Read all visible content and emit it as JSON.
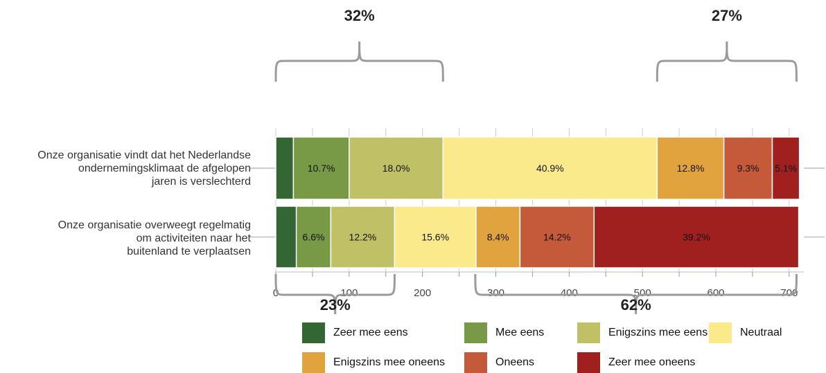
{
  "chart_data": {
    "type": "bar",
    "orientation": "horizontal",
    "stacked": true,
    "categories": [
      "Onze organisatie vindt dat het Nederlandse ondernemingsklimaat de afgelopen jaren is verslechterd",
      "Onze organisatie overweegt regelmatig om activiteiten naar het buitenland te verplaatsen"
    ],
    "category_lines": [
      [
        "Onze organisatie vindt dat het Nederlandse",
        "ondernemingsklimaat de afgelopen",
        "jaren is verslechterd"
      ],
      [
        "Onze organisatie overweegt regelmatig",
        "om activiteiten naar het",
        "buitenland te verplaatsen"
      ]
    ],
    "series": [
      {
        "name": "Zeer mee eens",
        "color": "#336633",
        "values": [
          24,
          28
        ],
        "labels": [
          "",
          ""
        ]
      },
      {
        "name": "Mee eens",
        "color": "#789a46",
        "values": [
          76,
          47
        ],
        "labels": [
          "10.7%",
          "6.6%"
        ]
      },
      {
        "name": "Enigszins mee eens",
        "color": "#c0c067",
        "values": [
          128,
          87
        ],
        "labels": [
          "18.0%",
          "12.2%"
        ]
      },
      {
        "name": "Neutraal",
        "color": "#faea8b",
        "values": [
          292,
          111
        ],
        "labels": [
          "40.9%",
          "15.6%"
        ]
      },
      {
        "name": "Enigszins mee oneens",
        "color": "#e0a33e",
        "values": [
          91,
          60
        ],
        "labels": [
          "12.8%",
          "8.4%"
        ]
      },
      {
        "name": "Oneens",
        "color": "#c55a3b",
        "values": [
          66,
          101
        ],
        "labels": [
          "9.3%",
          "14.2%"
        ]
      },
      {
        "name": "Zeer mee oneens",
        "color": "#a02020",
        "values": [
          37,
          279
        ],
        "labels": [
          "5.1%",
          "39.2%"
        ]
      }
    ],
    "xlim": [
      0,
      720
    ],
    "xticks": [
      0,
      100,
      200,
      300,
      400,
      500,
      600,
      700
    ],
    "grid": true,
    "legend_position": "bottom",
    "annotations": [
      {
        "text": "32%",
        "from": 0,
        "to": 228,
        "row": "top",
        "position": "above"
      },
      {
        "text": "27%",
        "from": 520,
        "to": 710,
        "row": "top",
        "position": "above"
      },
      {
        "text": "23%",
        "from": 0,
        "to": 162,
        "row": "bottom",
        "position": "below"
      },
      {
        "text": "62%",
        "from": 272,
        "to": 710,
        "row": "bottom",
        "position": "below"
      }
    ]
  }
}
